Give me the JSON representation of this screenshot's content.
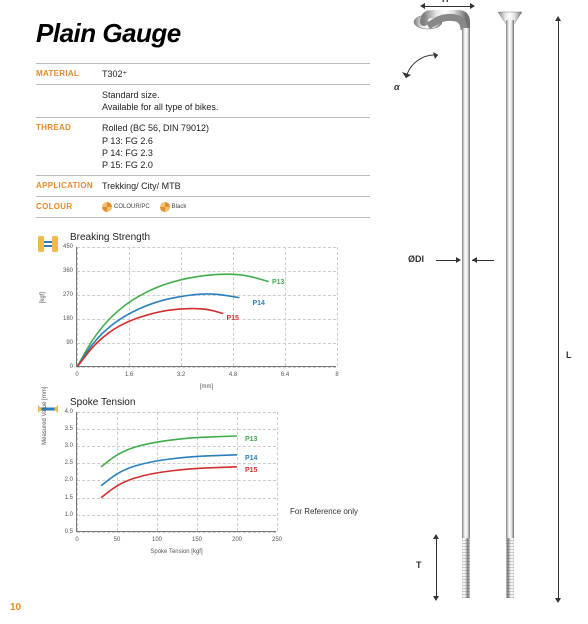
{
  "page_number": "10",
  "title": "Plain Gauge",
  "specs": {
    "material": {
      "label": "MATERIAL",
      "value": "T302⁺",
      "note": "Standard size.\nAvailable for all type of bikes."
    },
    "thread": {
      "label": "THREAD",
      "lines": [
        "Rolled (BC 56, DIN 79012)",
        "P 13: FG 2.6",
        "P 14: FG 2.3",
        "P 15: FG 2.0"
      ]
    },
    "application": {
      "label": "APPLICATION",
      "value": "Trekking/ City/ MTB"
    },
    "colour": {
      "label": "COLOUR",
      "items": [
        "COLOUR/PC",
        "Black"
      ]
    }
  },
  "breaking_strength": {
    "title": "Breaking Strength",
    "type": "line",
    "ylabel": "[kgf]",
    "xlabel": "[mm]",
    "yticks": [
      0,
      90,
      180,
      270,
      360,
      450
    ],
    "ylim": [
      0,
      450
    ],
    "xticks": [
      0,
      1.6,
      3.2,
      4.8,
      6.4,
      8.0
    ],
    "xlim": [
      0,
      8.0
    ],
    "grid_color": "#cccccc",
    "axis_color": "#777777",
    "tick_fontsize": 6,
    "series": [
      {
        "name": "P13",
        "color": "#3fae49",
        "label_pos": {
          "x": 6.0,
          "y": 330
        },
        "points": [
          [
            0,
            0
          ],
          [
            0.6,
            130
          ],
          [
            1.4,
            230
          ],
          [
            2.4,
            300
          ],
          [
            3.4,
            335
          ],
          [
            4.4,
            350
          ],
          [
            5.2,
            345
          ],
          [
            5.9,
            320
          ]
        ]
      },
      {
        "name": "P14",
        "color": "#2a7fbf",
        "label_pos": {
          "x": 5.4,
          "y": 250
        },
        "points": [
          [
            0,
            0
          ],
          [
            0.6,
            110
          ],
          [
            1.4,
            190
          ],
          [
            2.4,
            245
          ],
          [
            3.4,
            270
          ],
          [
            4.2,
            276
          ],
          [
            5.0,
            260
          ]
        ]
      },
      {
        "name": "P15",
        "color": "#d22f2f",
        "label_pos": {
          "x": 4.6,
          "y": 195
        },
        "points": [
          [
            0,
            0
          ],
          [
            0.6,
            95
          ],
          [
            1.4,
            165
          ],
          [
            2.4,
            205
          ],
          [
            3.2,
            220
          ],
          [
            4.0,
            218
          ],
          [
            4.5,
            200
          ]
        ]
      }
    ]
  },
  "spoke_tension": {
    "title": "Spoke Tension",
    "type": "line",
    "ylabel": "Measured Value [mm]",
    "xlabel": "Spoke Tension [kgf]",
    "yticks": [
      "0.5",
      "1.0",
      "1.5",
      "2.0",
      "2.5",
      "3.0",
      "3.5",
      "4.0"
    ],
    "ylim": [
      0.5,
      4.0
    ],
    "xticks": [
      0,
      50,
      100,
      150,
      200,
      250
    ],
    "xlim": [
      0,
      250
    ],
    "grid_color": "#cccccc",
    "axis_color": "#777777",
    "tick_fontsize": 6,
    "ref_note": "For Reference only",
    "series": [
      {
        "name": "P13",
        "color": "#3fae49",
        "label_pos": {
          "x": 210,
          "y": 3.3
        },
        "points": [
          [
            30,
            2.4
          ],
          [
            55,
            2.85
          ],
          [
            90,
            3.1
          ],
          [
            140,
            3.25
          ],
          [
            200,
            3.3
          ]
        ]
      },
      {
        "name": "P14",
        "color": "#2a7fbf",
        "label_pos": {
          "x": 210,
          "y": 2.75
        },
        "points": [
          [
            30,
            1.85
          ],
          [
            55,
            2.3
          ],
          [
            90,
            2.55
          ],
          [
            140,
            2.7
          ],
          [
            200,
            2.75
          ]
        ]
      },
      {
        "name": "P15",
        "color": "#d22f2f",
        "label_pos": {
          "x": 210,
          "y": 2.4
        },
        "points": [
          [
            30,
            1.5
          ],
          [
            55,
            1.95
          ],
          [
            90,
            2.2
          ],
          [
            140,
            2.35
          ],
          [
            200,
            2.4
          ]
        ]
      }
    ]
  },
  "diagram": {
    "labels": {
      "H": "H",
      "alpha": "α",
      "ODI": "ØDI",
      "L": "L",
      "T": "T"
    },
    "spoke_color_light": "#d8d8d8",
    "spoke_color_dark": "#9a9a9a",
    "spoke_highlight": "#f0f0f0"
  },
  "colors": {
    "accent": "#e58b2a",
    "text": "#222222",
    "border": "#bbbbbb"
  }
}
